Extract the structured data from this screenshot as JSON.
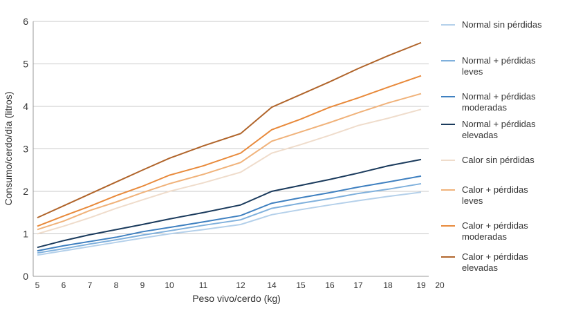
{
  "chart_data": {
    "type": "line",
    "title": "",
    "xlabel": "Peso vivo/cerdo (kg)",
    "ylabel": "Consumo/cerdo/día (litros)",
    "x_ticks": [
      "5",
      "6",
      "7",
      "8",
      "9",
      "10",
      "11",
      "12",
      "14",
      "15",
      "16",
      "17",
      "18",
      "19",
      "20"
    ],
    "y_ticks": [
      "0",
      "1",
      "2",
      "3",
      "4",
      "5",
      "6"
    ],
    "ylim": [
      0,
      6
    ],
    "grid": true,
    "legend_position": "right",
    "x": [
      "5",
      "6",
      "7",
      "8",
      "9",
      "10",
      "11",
      "12",
      "14",
      "15",
      "16",
      "17",
      "18",
      "19"
    ],
    "series": [
      {
        "name": "Normal sin pérdidas",
        "label_lines": [
          "Normal sin pérdidas"
        ],
        "color": "#b4d0ea",
        "values": [
          0.5,
          0.6,
          0.7,
          0.8,
          0.9,
          1.0,
          1.1,
          1.22,
          1.45,
          1.57,
          1.68,
          1.78,
          1.88,
          1.98
        ]
      },
      {
        "name": "Normal + pérdidas leves",
        "label_lines": [
          "Normal + pérdidas",
          "leves"
        ],
        "color": "#7fb0dc",
        "values": [
          0.55,
          0.65,
          0.76,
          0.86,
          0.97,
          1.07,
          1.2,
          1.33,
          1.6,
          1.72,
          1.83,
          1.95,
          2.05,
          2.18
        ]
      },
      {
        "name": "Normal + pérdidas moderadas",
        "label_lines": [
          "Normal + pérdidas",
          "moderadas"
        ],
        "color": "#3f80c0",
        "values": [
          0.6,
          0.72,
          0.82,
          0.92,
          1.05,
          1.15,
          1.28,
          1.43,
          1.72,
          1.85,
          1.97,
          2.1,
          2.22,
          2.36
        ]
      },
      {
        "name": "Normal + pérdidas elevadas",
        "label_lines": [
          "Normal + pérdidas",
          "elevadas"
        ],
        "color": "#1a3a5c",
        "values": [
          0.68,
          0.84,
          0.98,
          1.1,
          1.22,
          1.35,
          1.5,
          1.68,
          2.0,
          2.14,
          2.28,
          2.43,
          2.6,
          2.75
        ]
      },
      {
        "name": "Calor sin pérdidas",
        "label_lines": [
          "Calor sin pérdidas"
        ],
        "color": "#efdccb",
        "values": [
          1.0,
          1.18,
          1.38,
          1.6,
          1.8,
          2.0,
          2.2,
          2.45,
          2.9,
          3.1,
          3.32,
          3.55,
          3.72,
          3.93
        ]
      },
      {
        "name": "Calor + pérdidas leves",
        "label_lines": [
          "Calor + pérdidas",
          "leves"
        ],
        "color": "#f0b27a",
        "values": [
          1.1,
          1.3,
          1.55,
          1.75,
          1.97,
          2.18,
          2.4,
          2.68,
          3.18,
          3.4,
          3.62,
          3.85,
          4.08,
          4.3
        ]
      },
      {
        "name": "Calor + pérdidas moderadas",
        "label_lines": [
          "Calor + pérdidas",
          "moderadas"
        ],
        "color": "#e8893a",
        "values": [
          1.18,
          1.42,
          1.65,
          1.9,
          2.12,
          2.38,
          2.6,
          2.9,
          3.45,
          3.7,
          3.98,
          4.2,
          4.45,
          4.72
        ]
      },
      {
        "name": "Calor + pérdidas elevadas",
        "label_lines": [
          "Calor + pérdidas",
          "elevadas"
        ],
        "color": "#b0642a",
        "values": [
          1.38,
          1.66,
          1.94,
          2.22,
          2.5,
          2.78,
          3.07,
          3.36,
          3.98,
          4.28,
          4.58,
          4.89,
          5.19,
          5.5
        ]
      }
    ]
  }
}
